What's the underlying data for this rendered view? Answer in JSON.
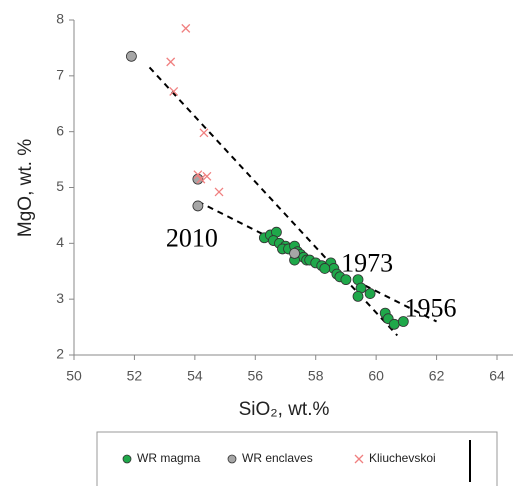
{
  "chart_data": {
    "type": "scatter",
    "x_label": "SiO₂, wt.%",
    "y_label": "MgO, wt. %",
    "xlim": [
      50,
      64
    ],
    "ylim": [
      2,
      8
    ],
    "xticks": [
      50,
      52,
      54,
      56,
      58,
      60,
      62,
      64
    ],
    "yticks": [
      2,
      3,
      4,
      5,
      6,
      7,
      8
    ],
    "grid": false,
    "legend": "bottom",
    "series": [
      {
        "name": "WR magma",
        "color": "#1fa84a",
        "marker": "circle",
        "x": [
          56.3,
          56.5,
          56.7,
          56.6,
          56.8,
          57.0,
          56.9,
          57.1,
          57.3,
          57.4,
          57.5,
          57.6,
          57.7,
          57.8,
          58.0,
          58.2,
          58.5,
          58.6,
          58.7,
          58.8,
          59.0,
          59.4,
          59.5,
          59.4,
          59.8,
          60.3,
          60.4,
          60.6,
          60.9,
          57.3,
          58.3
        ],
        "y": [
          4.1,
          4.15,
          4.2,
          4.05,
          4.0,
          3.95,
          3.9,
          3.9,
          3.95,
          3.85,
          3.8,
          3.75,
          3.7,
          3.7,
          3.65,
          3.6,
          3.65,
          3.55,
          3.45,
          3.4,
          3.35,
          3.35,
          3.2,
          3.05,
          3.1,
          2.75,
          2.65,
          2.55,
          2.6,
          3.7,
          3.55
        ]
      },
      {
        "name": "WR enclaves",
        "color": "#a6a6a6",
        "marker": "circle",
        "x": [
          51.9,
          54.1,
          54.1,
          57.3
        ],
        "y": [
          7.35,
          5.15,
          4.67,
          3.82
        ]
      },
      {
        "name": "Kliuchevskoi",
        "color": "#f08080",
        "marker": "x",
        "x": [
          53.7,
          53.2,
          53.3,
          54.3,
          54.1,
          54.4,
          54.8,
          54.2
        ],
        "y": [
          7.85,
          7.25,
          6.72,
          5.98,
          5.23,
          5.2,
          4.92,
          5.15
        ]
      }
    ],
    "trend_lines": [
      {
        "x": [
          52.5,
          60.7
        ],
        "y": [
          7.15,
          2.35
        ]
      },
      {
        "x": [
          54.1,
          62.0
        ],
        "y": [
          4.75,
          2.6
        ]
      }
    ],
    "annotations": [
      {
        "text": "2010",
        "x": 53.9,
        "y": 4.05
      },
      {
        "text": "1973",
        "x": 59.7,
        "y": 3.6
      },
      {
        "text": "1956",
        "x": 61.8,
        "y": 2.8
      }
    ]
  }
}
